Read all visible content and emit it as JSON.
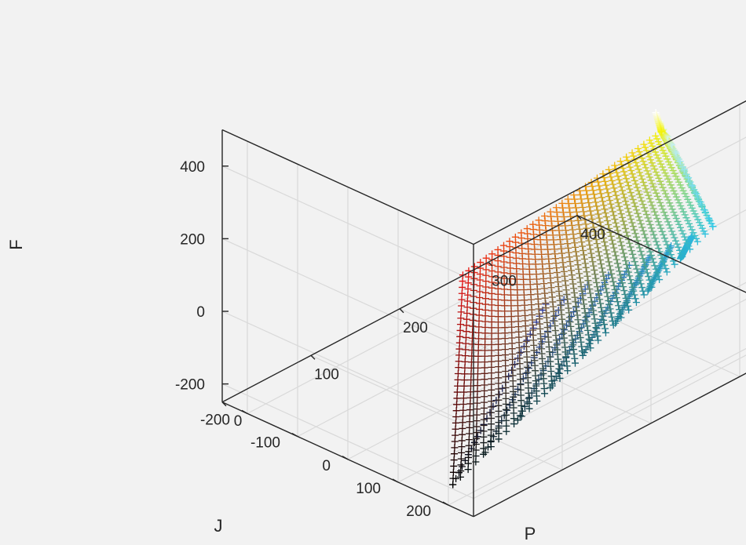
{
  "chart_data": {
    "type": "scatter",
    "dimensions": 3,
    "marker": "+",
    "coloring": "RGB color cube mapped onto points",
    "title": "",
    "xlabel": "P",
    "ylabel": "J",
    "zlabel": "F",
    "xlim": [
      0,
      400
    ],
    "ylim": [
      -250,
      250
    ],
    "zlim": [
      -250,
      500
    ],
    "xticks": [
      "0",
      "100",
      "200",
      "300",
      "400"
    ],
    "yticks": [
      "-200",
      "-100",
      "0",
      "100",
      "200"
    ],
    "zticks": [
      "-200",
      "0",
      "200",
      "400"
    ],
    "grid": true,
    "surface_corners": {
      "black": [
        5,
        200,
        -200
      ],
      "red": [
        5,
        220,
        390
      ],
      "yellow": [
        240,
        200,
        470
      ],
      "white": [
        330,
        30,
        300
      ],
      "cyan": [
        400,
        20,
        -110
      ],
      "blue": [
        240,
        -30,
        -150
      ],
      "green": [
        250,
        150,
        30
      ]
    },
    "colors": {
      "black": "#000000",
      "red": "#e81414",
      "yellow": "#f2f20a",
      "white": "#ffffff",
      "cyan": "#2ec8e6",
      "blue": "#2d3aa0",
      "green": "#38c018",
      "background": "#f2f2f2"
    }
  }
}
